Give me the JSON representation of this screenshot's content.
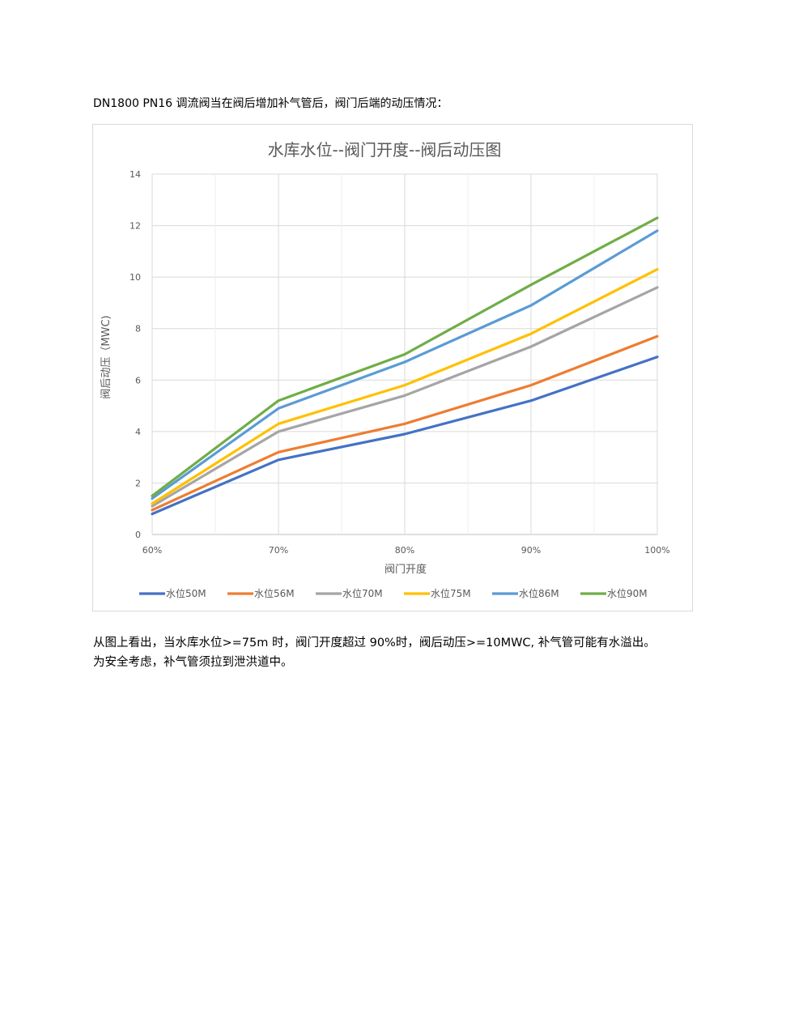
{
  "intro_text": "DN1800 PN16  调流阀当在阀后增加补气管后，阀门后端的动压情况：",
  "chart_data": {
    "type": "line",
    "title": "水库水位--阀门开度--阀后动压图",
    "xlabel": "阀门开度",
    "ylabel": "阀后动压（MWC)",
    "categories": [
      "60%",
      "70%",
      "80%",
      "90%",
      "100%"
    ],
    "ylim": [
      0,
      14
    ],
    "yticks": [
      0,
      2,
      4,
      6,
      8,
      10,
      12,
      14
    ],
    "grid": true,
    "legend_position": "bottom",
    "series": [
      {
        "name": "水位50M",
        "color": "#4472c4",
        "values": [
          0.8,
          2.9,
          3.9,
          5.2,
          6.9
        ]
      },
      {
        "name": "水位56M",
        "color": "#ed7d31",
        "values": [
          0.95,
          3.2,
          4.3,
          5.8,
          7.7
        ]
      },
      {
        "name": "水位70M",
        "color": "#a5a5a5",
        "values": [
          1.1,
          4.0,
          5.4,
          7.3,
          9.6
        ]
      },
      {
        "name": "水位75M",
        "color": "#ffc000",
        "values": [
          1.2,
          4.3,
          5.8,
          7.8,
          10.3
        ]
      },
      {
        "name": "水位86M",
        "color": "#5b9bd5",
        "values": [
          1.4,
          4.9,
          6.7,
          8.9,
          11.8
        ]
      },
      {
        "name": "水位90M",
        "color": "#70ad47",
        "values": [
          1.5,
          5.2,
          7.0,
          9.7,
          12.3
        ]
      }
    ]
  },
  "conclusion_line1": "从图上看出，当水库水位>=75m 时，阀门开度超过 90%时，阀后动压>=10MWC, 补气管可能有水溢出。",
  "conclusion_line2": "为安全考虑，补气管须拉到泄洪道中。"
}
